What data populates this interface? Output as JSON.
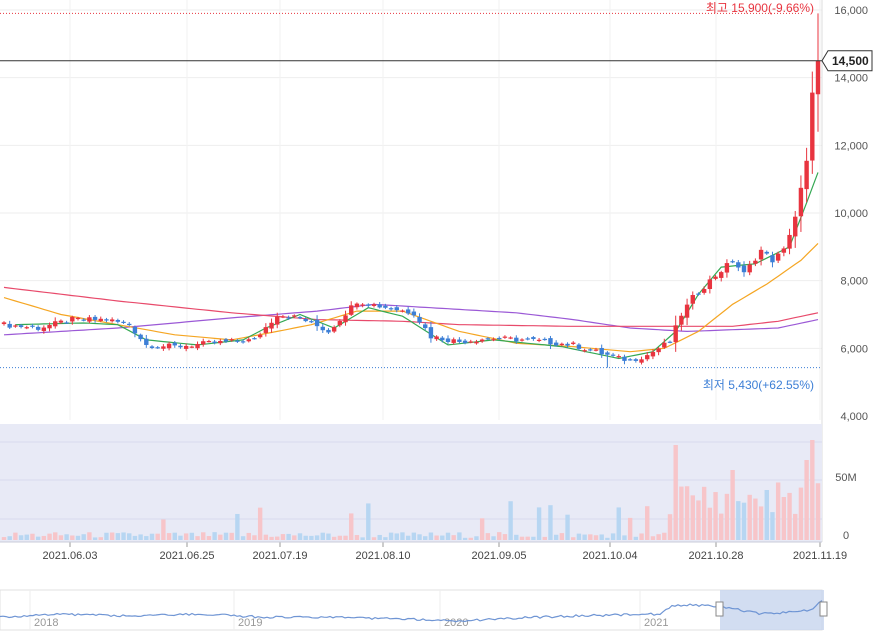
{
  "chart_data": {
    "type": "candlestick",
    "price_axis": {
      "min": 4000,
      "max": 16000,
      "ticks": [
        "16,000",
        "14,000",
        "12,000",
        "10,000",
        "8,000",
        "6,000",
        "4,000"
      ]
    },
    "volume_axis": {
      "ticks": [
        "50M",
        "0"
      ]
    },
    "date_ticks": [
      "2021.06.03",
      "2021.06.25",
      "2021.07.19",
      "2021.08.10",
      "2021.09.05",
      "2021.10.04",
      "2021.10.28",
      "2021.11.19"
    ],
    "current_price": {
      "label": "14,500",
      "value": 14500
    },
    "high_label": "최고 15,900(-9.66%)",
    "low_label": "최저 5,430(+62.55%)",
    "high_value": 15900,
    "low_value": 5430,
    "navigator": {
      "years": [
        "2018",
        "2019",
        "2020",
        "2021"
      ]
    },
    "colors": {
      "up": "#e8343f",
      "down": "#3d7fd6",
      "ma5": "#34a853",
      "ma20": "#f5a623",
      "ma60": "#e84a6b",
      "ma120": "#9b59d6",
      "volume_up": "#f7c5c9",
      "volume_down": "#b7d6f2",
      "volume_panel_bg": "#e8eaf6",
      "navigator_selection": "#c7d5ee"
    },
    "ohlc_keypoints": [
      [
        0,
        6700
      ],
      [
        6,
        6600
      ],
      [
        12,
        6850
      ],
      [
        18,
        6850
      ],
      [
        22,
        6700
      ],
      [
        25,
        6100
      ],
      [
        30,
        6050
      ],
      [
        36,
        6150
      ],
      [
        44,
        6250
      ],
      [
        48,
        7000
      ],
      [
        52,
        6900
      ],
      [
        57,
        6500
      ],
      [
        62,
        7400
      ],
      [
        66,
        7250
      ],
      [
        72,
        7050
      ],
      [
        75,
        6350
      ],
      [
        80,
        6200
      ],
      [
        85,
        6300
      ],
      [
        92,
        6250
      ],
      [
        100,
        6100
      ],
      [
        105,
        5850
      ],
      [
        108,
        5700
      ],
      [
        110,
        5650
      ],
      [
        113,
        5800
      ],
      [
        115,
        6000
      ],
      [
        117,
        6200
      ],
      [
        119,
        7000
      ],
      [
        121,
        7500
      ],
      [
        124,
        8000
      ],
      [
        126,
        8300
      ],
      [
        128,
        8600
      ],
      [
        130,
        8200
      ],
      [
        133,
        8900
      ],
      [
        135,
        8600
      ],
      [
        137,
        8900
      ],
      [
        139,
        9900
      ],
      [
        141,
        11500
      ],
      [
        142,
        13500
      ],
      [
        143,
        14500
      ]
    ],
    "ma5": [
      [
        2,
        6700
      ],
      [
        14,
        6750
      ],
      [
        20,
        6700
      ],
      [
        25,
        6250
      ],
      [
        34,
        6100
      ],
      [
        42,
        6250
      ],
      [
        46,
        6600
      ],
      [
        52,
        7000
      ],
      [
        58,
        6600
      ],
      [
        64,
        7200
      ],
      [
        70,
        6950
      ],
      [
        78,
        6100
      ],
      [
        86,
        6250
      ],
      [
        98,
        6050
      ],
      [
        108,
        5700
      ],
      [
        114,
        5900
      ],
      [
        118,
        6500
      ],
      [
        122,
        7600
      ],
      [
        126,
        8400
      ],
      [
        132,
        8500
      ],
      [
        138,
        9000
      ],
      [
        141,
        10300
      ],
      [
        143,
        11200
      ]
    ],
    "ma20": [
      [
        0,
        7500
      ],
      [
        10,
        7000
      ],
      [
        20,
        6700
      ],
      [
        30,
        6400
      ],
      [
        40,
        6250
      ],
      [
        48,
        6500
      ],
      [
        54,
        6700
      ],
      [
        62,
        7100
      ],
      [
        70,
        7100
      ],
      [
        80,
        6500
      ],
      [
        90,
        6150
      ],
      [
        100,
        6050
      ],
      [
        110,
        5900
      ],
      [
        116,
        6000
      ],
      [
        122,
        6500
      ],
      [
        128,
        7300
      ],
      [
        134,
        7900
      ],
      [
        140,
        8600
      ],
      [
        143,
        9100
      ]
    ],
    "ma60": [
      [
        0,
        7800
      ],
      [
        20,
        7400
      ],
      [
        40,
        7050
      ],
      [
        55,
        6850
      ],
      [
        70,
        6800
      ],
      [
        80,
        6700
      ],
      [
        100,
        6650
      ],
      [
        115,
        6650
      ],
      [
        128,
        6650
      ],
      [
        136,
        6800
      ],
      [
        143,
        7050
      ]
    ],
    "ma120": [
      [
        0,
        6400
      ],
      [
        20,
        6600
      ],
      [
        40,
        6900
      ],
      [
        55,
        7100
      ],
      [
        65,
        7300
      ],
      [
        75,
        7200
      ],
      [
        90,
        7050
      ],
      [
        100,
        6850
      ],
      [
        110,
        6600
      ],
      [
        120,
        6500
      ],
      [
        136,
        6600
      ],
      [
        143,
        6850
      ]
    ],
    "volume_spikes": [
      [
        118,
        95
      ],
      [
        128,
        70
      ],
      [
        134,
        50
      ],
      [
        141,
        80
      ],
      [
        142,
        100
      ]
    ]
  }
}
